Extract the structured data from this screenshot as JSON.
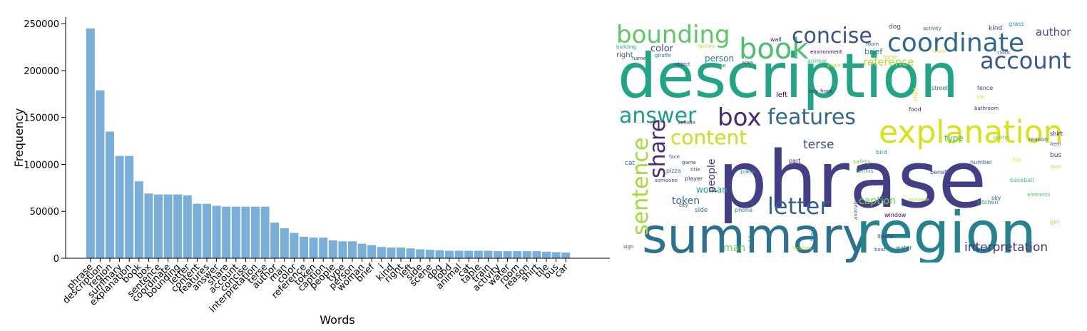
{
  "chart_data": [
    {
      "type": "bar",
      "title": "",
      "xlabel": "Words",
      "ylabel": "Frequency",
      "ylim": [
        0,
        257000
      ],
      "yticks": [
        "0",
        "50000",
        "100000",
        "150000",
        "200000",
        "250000"
      ],
      "grid": false,
      "bar_color": "#7aafd9",
      "categories": [
        "phrase",
        "description",
        "region",
        "summary",
        "explanation",
        "book",
        "box",
        "sentence",
        "coordinate",
        "bounding",
        "letter",
        "content",
        "features",
        "answer",
        "share",
        "account",
        "concise",
        "interpretation",
        "terse",
        "author",
        "man",
        "color",
        "reference",
        "token",
        "caption",
        "people",
        "type",
        "person",
        "woman",
        "brief",
        "i",
        "kind",
        "right",
        "left",
        "side",
        "scene",
        "dog",
        "food",
        "animal",
        "cat",
        "table",
        "train",
        "activity",
        "water",
        "room",
        "reason",
        "shirt",
        "tile",
        "bus",
        "car"
      ],
      "values": [
        245000,
        179000,
        135000,
        109000,
        109000,
        82000,
        69000,
        68000,
        68000,
        68000,
        67000,
        58000,
        58000,
        56000,
        55000,
        55000,
        55000,
        55000,
        55000,
        38000,
        32000,
        27000,
        23000,
        22000,
        22000,
        19000,
        18000,
        18000,
        15500,
        14000,
        12000,
        11500,
        11500,
        10500,
        9500,
        9000,
        8500,
        8000,
        8000,
        8000,
        8000,
        8000,
        7500,
        7500,
        7500,
        7500,
        7500,
        7000,
        6500,
        6000
      ]
    },
    {
      "type": "wordcloud",
      "words": [
        {
          "text": "description",
          "color": "#21a585"
        },
        {
          "text": "phrase",
          "color": "#433e85"
        },
        {
          "text": "summary",
          "color": "#2c728e"
        },
        {
          "text": "region",
          "color": "#26828e"
        },
        {
          "text": "explanation",
          "color": "#d8e219"
        },
        {
          "text": "book",
          "color": "#4ac16d"
        },
        {
          "text": "coordinate",
          "color": "#31688e"
        },
        {
          "text": "bounding",
          "color": "#5ec962"
        },
        {
          "text": "concise",
          "color": "#3b528b"
        },
        {
          "text": "account",
          "color": "#38598c"
        },
        {
          "text": "answer",
          "color": "#1f9e89"
        },
        {
          "text": "box",
          "color": "#482878"
        },
        {
          "text": "features",
          "color": "#31688e"
        },
        {
          "text": "sentence",
          "color": "#a5db36"
        },
        {
          "text": "share",
          "color": "#482878"
        },
        {
          "text": "content",
          "color": "#c8e020"
        },
        {
          "text": "letter",
          "color": "#35608d"
        },
        {
          "text": "terse",
          "color": "#3e4a89"
        },
        {
          "text": "interpretation",
          "color": "#46337e"
        },
        {
          "text": "author",
          "color": "#3b528b"
        },
        {
          "text": "caption",
          "color": "#7ad151"
        },
        {
          "text": "reference",
          "color": "#b5de2b"
        },
        {
          "text": "token",
          "color": "#2d708e"
        },
        {
          "text": "color",
          "color": "#414487"
        },
        {
          "text": "person",
          "color": "#297b8e"
        },
        {
          "text": "woman",
          "color": "#1fa088"
        },
        {
          "text": "man",
          "color": "#6ccd5a"
        },
        {
          "text": "people",
          "color": "#46337e"
        },
        {
          "text": "type",
          "color": "#44bf70"
        },
        {
          "text": "brief",
          "color": "#2a788e"
        },
        {
          "text": "kind",
          "color": "#433e85"
        },
        {
          "text": "left",
          "color": "#440154"
        },
        {
          "text": "right",
          "color": "#3b528b"
        },
        {
          "text": "side",
          "color": "#2e6e8e"
        },
        {
          "text": "scene",
          "color": "#6ece58"
        },
        {
          "text": "dog",
          "color": "#3e4989"
        },
        {
          "text": "food",
          "color": "#472f7d"
        },
        {
          "text": "animal",
          "color": "#35b779"
        },
        {
          "text": "cat",
          "color": "#2c728e"
        },
        {
          "text": "table",
          "color": "#2a788e"
        },
        {
          "text": "train",
          "color": "#24878e"
        },
        {
          "text": "activity",
          "color": "#39568c"
        },
        {
          "text": "water",
          "color": "#2c728e"
        },
        {
          "text": "room",
          "color": "#31688e"
        },
        {
          "text": "reason",
          "color": "#3b528b"
        },
        {
          "text": "shirt",
          "color": "#440154"
        },
        {
          "text": "bus",
          "color": "#433e85"
        },
        {
          "text": "grass",
          "color": "#20928c"
        },
        {
          "text": "wall",
          "color": "#482475"
        },
        {
          "text": "factors",
          "color": "#b8de29"
        },
        {
          "text": "building",
          "color": "#1e9c89"
        },
        {
          "text": "name",
          "color": "#3e4a89"
        },
        {
          "text": "giraffe",
          "color": "#287d8e"
        },
        {
          "text": "object",
          "color": "#404387"
        },
        {
          "text": "time",
          "color": "#20a386"
        },
        {
          "text": "area",
          "color": "#3b528b"
        },
        {
          "text": "environment",
          "color": "#440154"
        },
        {
          "text": "horse",
          "color": "#bddf26"
        },
        {
          "text": "truck",
          "color": "#d0e11c"
        },
        {
          "text": "clock",
          "color": "#3b528b"
        },
        {
          "text": "place",
          "color": "#d0e11c"
        },
        {
          "text": "boy",
          "color": "#46327e"
        },
        {
          "text": "front",
          "color": "#481f70"
        },
        {
          "text": "street",
          "color": "#2c728e"
        },
        {
          "text": "fence",
          "color": "#3f4788"
        },
        {
          "text": "child",
          "color": "#e2e418"
        },
        {
          "text": "car",
          "color": "#d8e219"
        },
        {
          "text": "bathroom",
          "color": "#472d7b"
        },
        {
          "text": "vehicle",
          "color": "#433e85"
        },
        {
          "text": "item",
          "color": "#3b528b"
        },
        {
          "text": "face",
          "color": "#39568c"
        },
        {
          "text": "bird",
          "color": "#20928c"
        },
        {
          "text": "top",
          "color": "#e5e419"
        },
        {
          "text": "game",
          "color": "#414487"
        },
        {
          "text": "title",
          "color": "#3b528b"
        },
        {
          "text": "part",
          "color": "#48186a"
        },
        {
          "text": "safety",
          "color": "#7ad151"
        },
        {
          "text": "number",
          "color": "#3b528b"
        },
        {
          "text": "men",
          "color": "#c2df23"
        },
        {
          "text": "pizza",
          "color": "#2c728e"
        },
        {
          "text": "tennis",
          "color": "#29af7f"
        },
        {
          "text": "benefits",
          "color": "#3e4a89"
        },
        {
          "text": "plate",
          "color": "#1f948c"
        },
        {
          "text": "player",
          "color": "#472c7a"
        },
        {
          "text": "someone",
          "color": "#3e4989"
        },
        {
          "text": "baseball",
          "color": "#44bf70"
        },
        {
          "text": "elements",
          "color": "#52c569"
        },
        {
          "text": "sky",
          "color": "#3b528b"
        },
        {
          "text": "purpose",
          "color": "#b8de29"
        },
        {
          "text": "city",
          "color": "#39568c"
        },
        {
          "text": "phone",
          "color": "#2c728e"
        },
        {
          "text": "animals",
          "color": "#3b528b"
        },
        {
          "text": "kitchen",
          "color": "#1f9a8a"
        },
        {
          "text": "girl",
          "color": "#a0da39"
        },
        {
          "text": "window",
          "color": "#440154"
        },
        {
          "text": "items",
          "color": "#472d7b"
        },
        {
          "text": "sign",
          "color": "#3e4a89"
        },
        {
          "text": "location",
          "color": "#d0e11c"
        },
        {
          "text": "boat",
          "color": "#39568c"
        }
      ]
    }
  ]
}
